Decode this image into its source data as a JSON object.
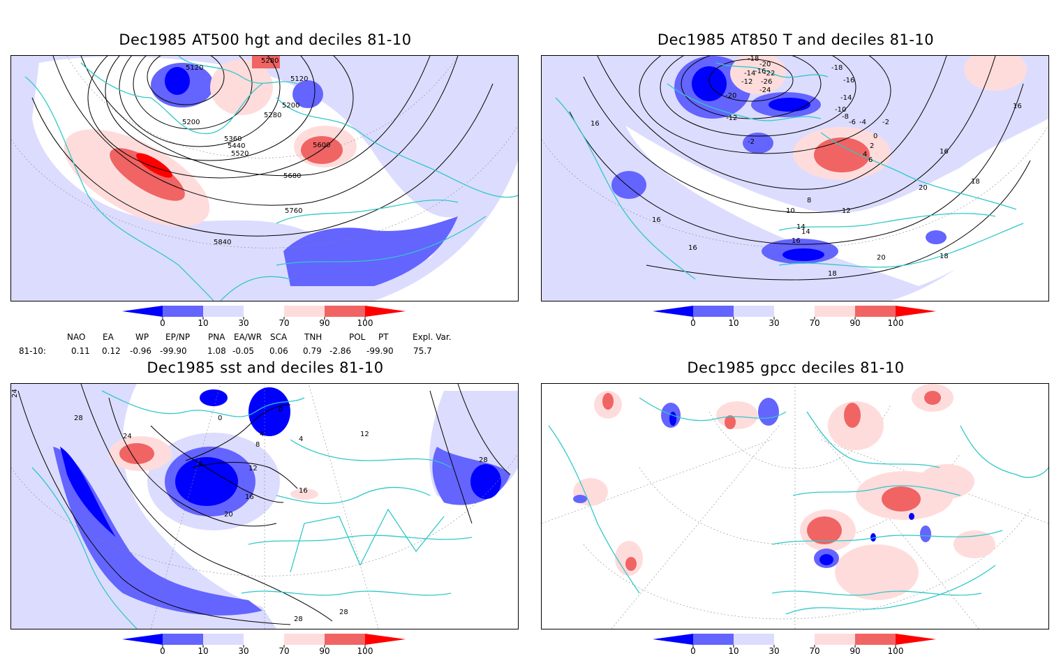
{
  "colors": {
    "blue_strong": "#0000ff",
    "blue_mid": "#6464ff",
    "blue_light": "#dcdcff",
    "red_light": "#ffdcdc",
    "red_mid": "#f06464",
    "red_strong": "#ff0000",
    "coast": "#30c8c8",
    "contour": "#000000"
  },
  "colorbar_ticks": [
    "0",
    "10",
    "30",
    "70",
    "90",
    "100"
  ],
  "panels": [
    {
      "id": "hgt500",
      "title": "Dec1985 AT500 hgt and deciles 81-10",
      "contour_labels": [
        "5120",
        "5280",
        "5120",
        "5200",
        "5280",
        "5200",
        "5360",
        "5440",
        "5520",
        "5600",
        "5680",
        "5760",
        "5840"
      ]
    },
    {
      "id": "t850",
      "title": "Dec1985 AT850 T and deciles 81-10",
      "contour_labels": [
        "-18",
        "-20",
        "-18",
        "-16",
        "-14",
        "-22",
        "-12",
        "-26",
        "-20",
        "-24",
        "-14",
        "-16",
        "-12",
        "-10",
        "-8",
        "-6",
        "-2",
        "-4",
        "-2",
        "0",
        "2",
        "4",
        "6",
        "16",
        "14",
        "16",
        "10",
        "12",
        "8",
        "14",
        "16",
        "16",
        "18",
        "20",
        "16",
        "18",
        "20",
        "18",
        "16"
      ]
    },
    {
      "id": "sst",
      "title": "Dec1985 sst and deciles 81-10",
      "contour_labels": [
        "24",
        "28",
        "24",
        "0",
        "0",
        "4",
        "8",
        "4",
        "12",
        "16",
        "20",
        "16",
        "28",
        "28",
        "28",
        "12",
        "4"
      ]
    },
    {
      "id": "gpcc",
      "title": "Dec1985 gpcc deciles 81-10",
      "contour_labels": []
    }
  ],
  "indices": {
    "row_label": "81-10:",
    "headers": [
      "NAO",
      "EA",
      "WP",
      "EP/NP",
      "PNA",
      "EA/WR",
      "SCA",
      "TNH",
      "POL",
      "PT",
      "Expl. Var."
    ],
    "values": [
      "0.11",
      "0.12",
      "-0.96",
      "-99.90",
      "1.08",
      "-0.05",
      "0.06",
      "0.79",
      "-2.86",
      "-99.90",
      "75.7"
    ]
  }
}
